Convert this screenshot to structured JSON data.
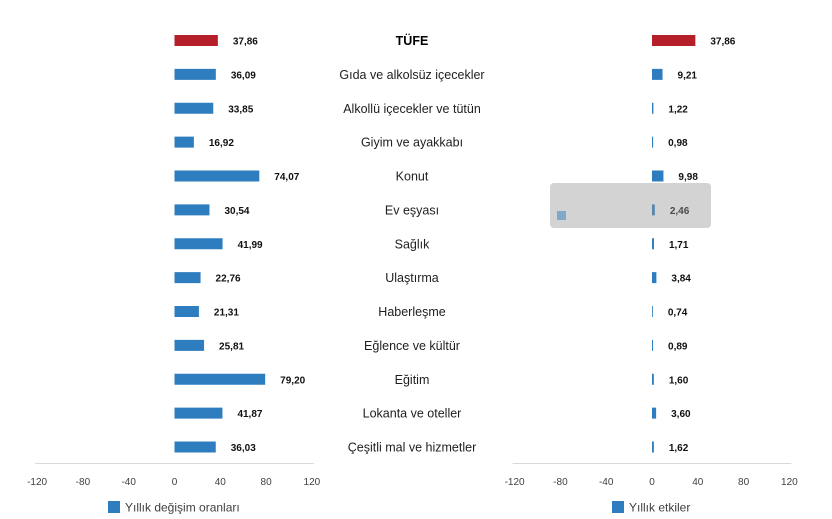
{
  "chart_data": {
    "type": "bar",
    "orientation": "horizontal",
    "categories": [
      "TÜFE",
      "Gıda ve alkolsüz içecekler",
      "Alkollü içecekler ve tütün",
      "Giyim ve ayakkabı",
      "Konut",
      "Ev eşyası",
      "Sağlık",
      "Ulaştırma",
      "Haberleşme",
      "Eğlence ve kültür",
      "Eğitim",
      "Lokanta ve oteller",
      "Çeşitli mal ve hizmetler"
    ],
    "series": [
      {
        "name": "Yıllık değişim oranları",
        "values": [
          37.86,
          36.09,
          33.85,
          16.92,
          74.07,
          30.54,
          41.99,
          22.76,
          21.31,
          25.81,
          79.2,
          41.87,
          36.03
        ],
        "color": "#2e7dbf"
      },
      {
        "name": "Yıllık etkiler",
        "values": [
          37.86,
          9.21,
          1.22,
          0.98,
          9.98,
          2.46,
          1.71,
          3.84,
          0.74,
          0.89,
          1.6,
          3.6,
          1.62
        ],
        "color": "#2e7dbf"
      }
    ],
    "highlight": {
      "index": 0,
      "color": "#b51f2a"
    },
    "xlim": [
      -120,
      120
    ],
    "xticks": [
      -120,
      -80,
      -40,
      0,
      40,
      80,
      120
    ],
    "grid": false,
    "legend": "bottom-left"
  }
}
